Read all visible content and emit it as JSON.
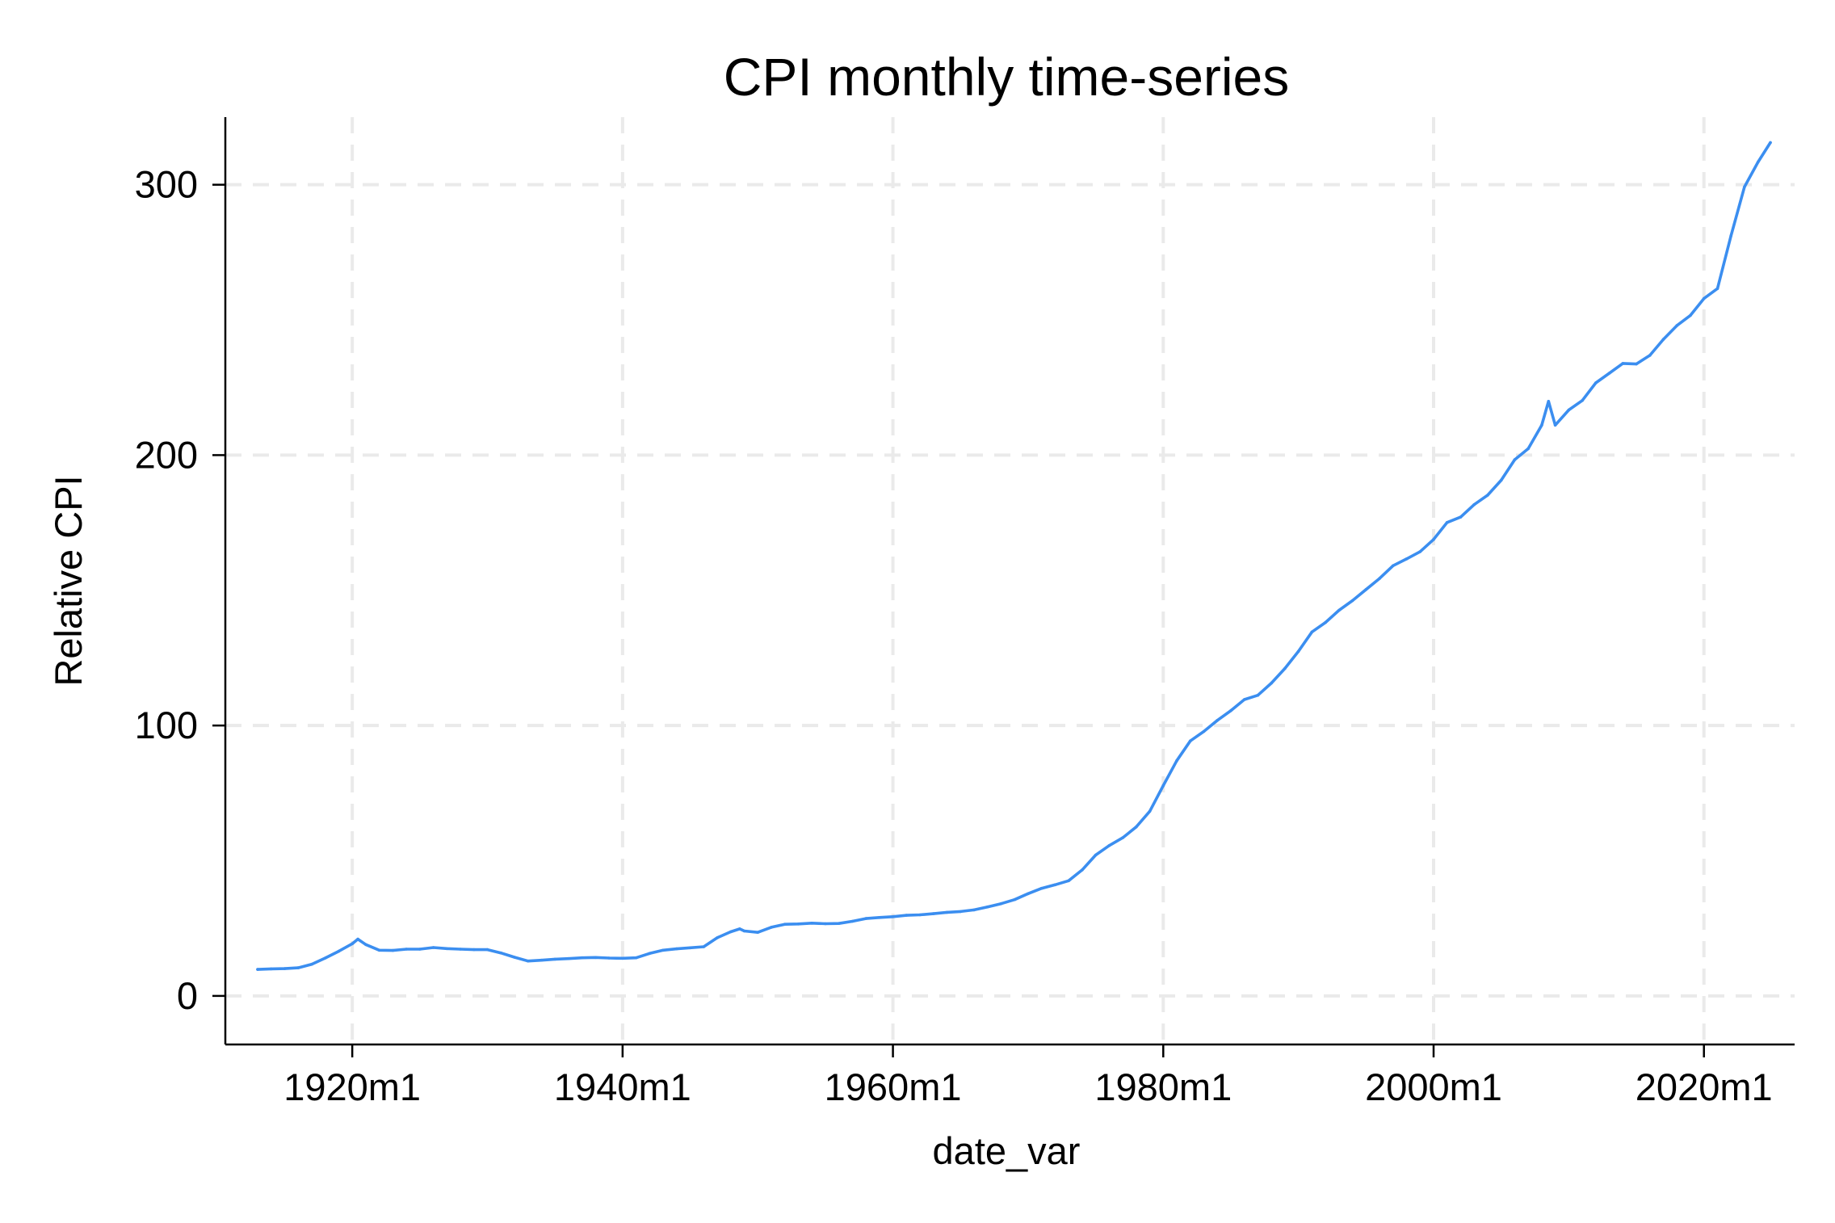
{
  "chart_data": {
    "type": "line",
    "title": "CPI monthly time-series",
    "xlabel": "date_var",
    "ylabel": "Relative CPI",
    "grid": true,
    "x_format": "year-month",
    "xlim": [
      "1913-01",
      "2024-12"
    ],
    "ylim": [
      -9,
      325
    ],
    "x_ticks": [
      {
        "value": "1920-01",
        "label": "1920m1"
      },
      {
        "value": "1940-01",
        "label": "1940m1"
      },
      {
        "value": "1960-01",
        "label": "1960m1"
      },
      {
        "value": "1980-01",
        "label": "1980m1"
      },
      {
        "value": "2000-01",
        "label": "2000m1"
      },
      {
        "value": "2020-01",
        "label": "2020m1"
      }
    ],
    "y_ticks": [
      {
        "value": 0,
        "label": "0"
      },
      {
        "value": 100,
        "label": "100"
      },
      {
        "value": 200,
        "label": "200"
      },
      {
        "value": 300,
        "label": "300"
      }
    ],
    "line_color": "#3b8ef0",
    "series": [
      {
        "points": [
          [
            "1913-01",
            9.8
          ],
          [
            "1914-01",
            10.0
          ],
          [
            "1915-01",
            10.1
          ],
          [
            "1916-01",
            10.4
          ],
          [
            "1917-01",
            11.7
          ],
          [
            "1918-01",
            14.0
          ],
          [
            "1919-01",
            16.5
          ],
          [
            "1920-01",
            19.3
          ],
          [
            "1920-06",
            21.0
          ],
          [
            "1921-01",
            19.0
          ],
          [
            "1922-01",
            16.9
          ],
          [
            "1923-01",
            16.8
          ],
          [
            "1924-01",
            17.3
          ],
          [
            "1925-01",
            17.3
          ],
          [
            "1926-01",
            17.9
          ],
          [
            "1927-01",
            17.5
          ],
          [
            "1928-01",
            17.3
          ],
          [
            "1929-01",
            17.1
          ],
          [
            "1930-01",
            17.1
          ],
          [
            "1931-01",
            15.9
          ],
          [
            "1932-01",
            14.3
          ],
          [
            "1933-01",
            12.9
          ],
          [
            "1934-01",
            13.2
          ],
          [
            "1935-01",
            13.6
          ],
          [
            "1936-01",
            13.8
          ],
          [
            "1937-01",
            14.1
          ],
          [
            "1938-01",
            14.2
          ],
          [
            "1939-01",
            14.0
          ],
          [
            "1940-01",
            13.9
          ],
          [
            "1941-01",
            14.1
          ],
          [
            "1942-01",
            15.7
          ],
          [
            "1943-01",
            16.9
          ],
          [
            "1944-01",
            17.4
          ],
          [
            "1945-01",
            17.8
          ],
          [
            "1946-01",
            18.2
          ],
          [
            "1947-01",
            21.5
          ],
          [
            "1948-01",
            23.7
          ],
          [
            "1948-09",
            24.8
          ],
          [
            "1949-01",
            24.0
          ],
          [
            "1950-01",
            23.5
          ],
          [
            "1951-01",
            25.4
          ],
          [
            "1952-01",
            26.5
          ],
          [
            "1953-01",
            26.6
          ],
          [
            "1954-01",
            26.9
          ],
          [
            "1955-01",
            26.7
          ],
          [
            "1956-01",
            26.8
          ],
          [
            "1957-01",
            27.6
          ],
          [
            "1958-01",
            28.6
          ],
          [
            "1959-01",
            29.0
          ],
          [
            "1960-01",
            29.3
          ],
          [
            "1961-01",
            29.8
          ],
          [
            "1962-01",
            30.0
          ],
          [
            "1963-01",
            30.4
          ],
          [
            "1964-01",
            30.9
          ],
          [
            "1965-01",
            31.2
          ],
          [
            "1966-01",
            31.8
          ],
          [
            "1967-01",
            32.9
          ],
          [
            "1968-01",
            34.1
          ],
          [
            "1969-01",
            35.6
          ],
          [
            "1970-01",
            37.8
          ],
          [
            "1971-01",
            39.8
          ],
          [
            "1972-01",
            41.1
          ],
          [
            "1973-01",
            42.6
          ],
          [
            "1974-01",
            46.6
          ],
          [
            "1975-01",
            52.1
          ],
          [
            "1976-01",
            55.6
          ],
          [
            "1977-01",
            58.5
          ],
          [
            "1978-01",
            62.5
          ],
          [
            "1979-01",
            68.3
          ],
          [
            "1980-01",
            77.8
          ],
          [
            "1981-01",
            87.0
          ],
          [
            "1982-01",
            94.3
          ],
          [
            "1983-01",
            97.8
          ],
          [
            "1984-01",
            101.9
          ],
          [
            "1985-01",
            105.5
          ],
          [
            "1986-01",
            109.6
          ],
          [
            "1987-01",
            111.2
          ],
          [
            "1988-01",
            115.7
          ],
          [
            "1989-01",
            121.1
          ],
          [
            "1990-01",
            127.4
          ],
          [
            "1991-01",
            134.6
          ],
          [
            "1992-01",
            138.1
          ],
          [
            "1993-01",
            142.6
          ],
          [
            "1994-01",
            146.2
          ],
          [
            "1995-01",
            150.3
          ],
          [
            "1996-01",
            154.4
          ],
          [
            "1997-01",
            159.1
          ],
          [
            "1998-01",
            161.6
          ],
          [
            "1999-01",
            164.3
          ],
          [
            "2000-01",
            168.8
          ],
          [
            "2001-01",
            175.1
          ],
          [
            "2002-01",
            177.1
          ],
          [
            "2003-01",
            181.7
          ],
          [
            "2004-01",
            185.2
          ],
          [
            "2005-01",
            190.7
          ],
          [
            "2006-01",
            198.3
          ],
          [
            "2007-01",
            202.4
          ],
          [
            "2008-01",
            211.1
          ],
          [
            "2008-07",
            219.9
          ],
          [
            "2009-01",
            211.1
          ],
          [
            "2010-01",
            216.7
          ],
          [
            "2011-01",
            220.2
          ],
          [
            "2012-01",
            226.7
          ],
          [
            "2013-01",
            230.3
          ],
          [
            "2014-01",
            233.9
          ],
          [
            "2015-01",
            233.7
          ],
          [
            "2016-01",
            236.9
          ],
          [
            "2017-01",
            242.8
          ],
          [
            "2018-01",
            247.9
          ],
          [
            "2019-01",
            251.7
          ],
          [
            "2020-01",
            257.9
          ],
          [
            "2021-01",
            261.6
          ],
          [
            "2022-01",
            281.1
          ],
          [
            "2023-01",
            299.2
          ],
          [
            "2024-01",
            308.4
          ],
          [
            "2024-12",
            315.6
          ]
        ]
      }
    ]
  }
}
